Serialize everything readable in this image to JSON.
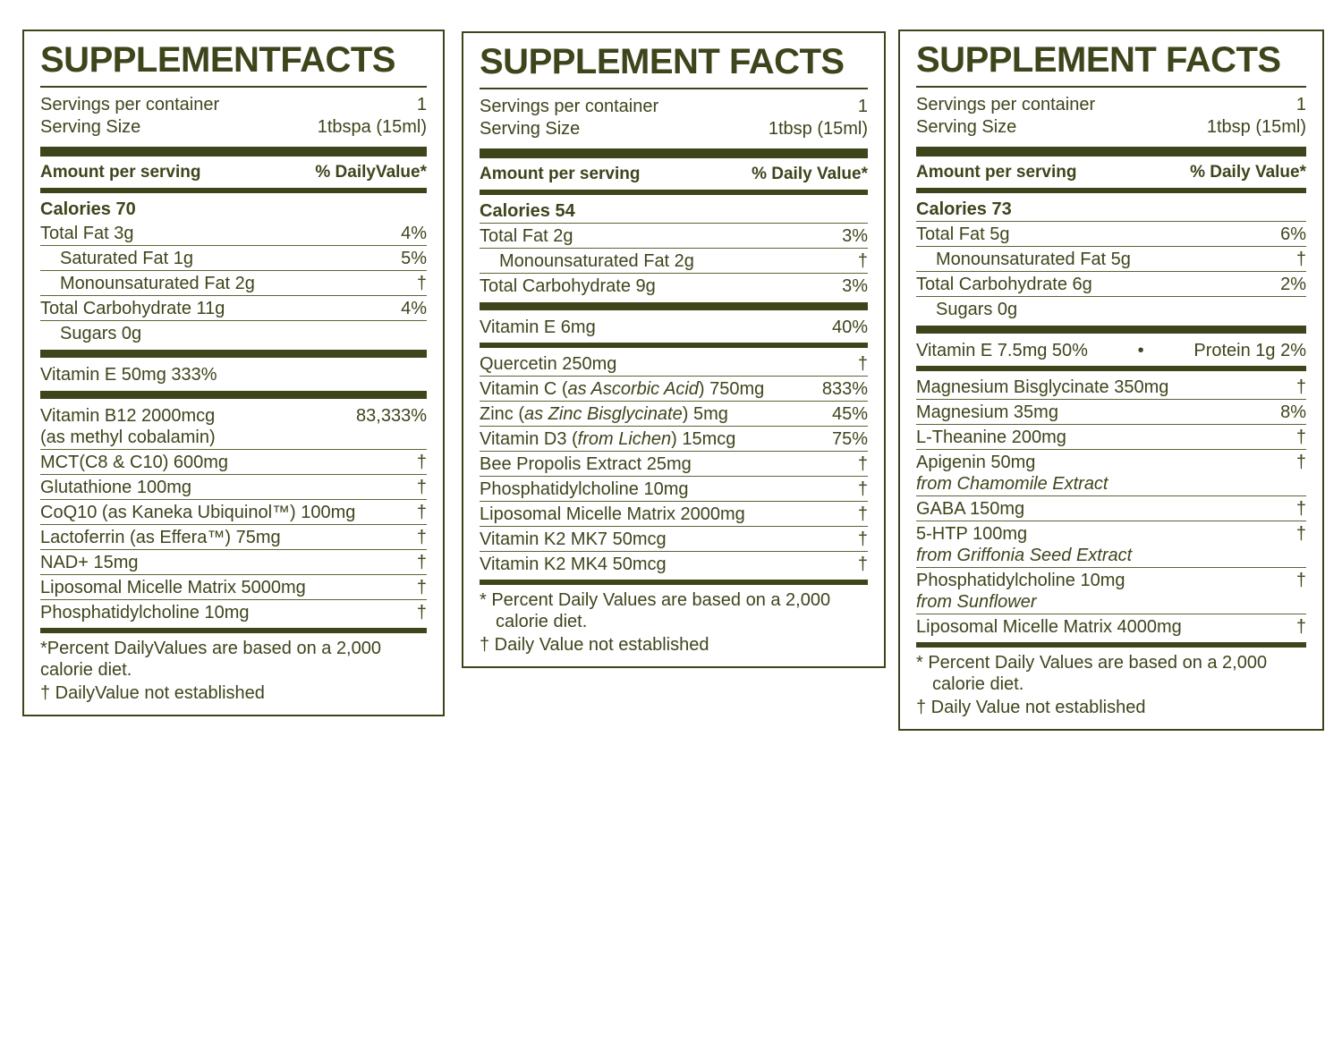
{
  "colors": {
    "ink": "#3d451b",
    "thin_line": "#5f6335",
    "background": "#ffffff"
  },
  "panels": [
    {
      "title": "SUPPLEMENTFACTS",
      "header": {
        "servings_label": "Servings per container",
        "servings_value": "1",
        "size_label": "Serving Size",
        "size_value": "1tbspa (15ml)",
        "amount": "Amount per serving",
        "dv": "% DailyValue*"
      },
      "rows": [
        {
          "t": "row",
          "bold": true,
          "name": [
            {
              "t": "Calories 70"
            }
          ],
          "value": "",
          "div": false
        },
        {
          "t": "row",
          "name": [
            {
              "t": "Total Fat 3g"
            }
          ],
          "value": "4%",
          "div": true
        },
        {
          "t": "row",
          "ind": true,
          "name": [
            {
              "t": "Saturated Fat 1g"
            }
          ],
          "value": "5%",
          "div": true
        },
        {
          "t": "row",
          "ind": true,
          "name": [
            {
              "t": "Monounsaturated Fat 2g"
            }
          ],
          "value": "†",
          "div": true
        },
        {
          "t": "row",
          "name": [
            {
              "t": "Total Carbohydrate 11g"
            }
          ],
          "value": "4%",
          "div": true
        },
        {
          "t": "row",
          "ind": true,
          "name": [
            {
              "t": "Sugars 0g"
            }
          ],
          "value": "",
          "div": false
        },
        {
          "t": "bar",
          "size": "lg"
        },
        {
          "t": "row",
          "name": [
            {
              "t": "Vitamin E 50mg 333%"
            }
          ],
          "value": "",
          "div": false
        },
        {
          "t": "bar",
          "size": "lg"
        },
        {
          "t": "row",
          "name": [
            {
              "t": "Vitamin B12 2000mcg"
            }
          ],
          "sub": [
            {
              "t": "(as methyl cobalamin)"
            }
          ],
          "value": "83,333%",
          "div": true
        },
        {
          "t": "row",
          "name": [
            {
              "t": "MCT(C8 & C10) 600mg"
            }
          ],
          "value": "†",
          "div": true
        },
        {
          "t": "row",
          "name": [
            {
              "t": "Glutathione 100mg"
            }
          ],
          "value": "†",
          "div": true
        },
        {
          "t": "row",
          "name": [
            {
              "t": "CoQ10 (as Kaneka Ubiquinol™) 100mg"
            }
          ],
          "value": "†",
          "div": true
        },
        {
          "t": "row",
          "name": [
            {
              "t": "Lactoferrin (as Effera™) 75mg"
            }
          ],
          "value": "†",
          "div": true
        },
        {
          "t": "row",
          "name": [
            {
              "t": "NAD+ 15mg"
            }
          ],
          "value": "†",
          "div": true
        },
        {
          "t": "row",
          "name": [
            {
              "t": "Liposomal Micelle Matrix 5000mg"
            }
          ],
          "value": "†",
          "div": true
        },
        {
          "t": "row",
          "name": [
            {
              "t": "Phosphatidylcholine 10mg"
            }
          ],
          "value": "†",
          "div": false
        },
        {
          "t": "bar",
          "size": "md"
        }
      ],
      "footnotes": [
        "*Percent DailyValues are based on a 2,000 calorie diet.",
        "† DailyValue not established"
      ]
    },
    {
      "title": "SUPPLEMENT FACTS",
      "header": {
        "servings_label": "Servings per container",
        "servings_value": "1",
        "size_label": "Serving Size",
        "size_value": "1tbsp (15ml)",
        "amount": "Amount per serving",
        "dv": "% Daily Value*"
      },
      "rows": [
        {
          "t": "row",
          "bold": true,
          "name": [
            {
              "t": "Calories 54"
            }
          ],
          "value": "",
          "div": true
        },
        {
          "t": "row",
          "name": [
            {
              "t": "Total Fat 2g"
            }
          ],
          "value": "3%",
          "div": true
        },
        {
          "t": "row",
          "ind": true,
          "name": [
            {
              "t": "Monounsaturated Fat 2g"
            }
          ],
          "value": "†",
          "div": true
        },
        {
          "t": "row",
          "name": [
            {
              "t": "Total Carbohydrate 9g"
            }
          ],
          "value": "3%",
          "div": false
        },
        {
          "t": "bar",
          "size": "lg"
        },
        {
          "t": "row",
          "name": [
            {
              "t": "Vitamin E 6mg"
            }
          ],
          "value": "40%",
          "div": false
        },
        {
          "t": "bar",
          "size": "md"
        },
        {
          "t": "row",
          "name": [
            {
              "t": "Quercetin 250mg"
            }
          ],
          "value": "†",
          "div": true
        },
        {
          "t": "row",
          "name": [
            {
              "t": "Vitamin C ("
            },
            {
              "t": "as Ascorbic Acid",
              "i": true
            },
            {
              "t": ") 750mg"
            }
          ],
          "value": "833%",
          "div": true
        },
        {
          "t": "row",
          "name": [
            {
              "t": "Zinc ("
            },
            {
              "t": "as Zinc Bisglycinate",
              "i": true
            },
            {
              "t": ") 5mg"
            }
          ],
          "value": "45%",
          "div": true
        },
        {
          "t": "row",
          "name": [
            {
              "t": "Vitamin D3 ("
            },
            {
              "t": "from Lichen",
              "i": true
            },
            {
              "t": ") 15mcg"
            }
          ],
          "value": "75%",
          "div": true
        },
        {
          "t": "row",
          "name": [
            {
              "t": "Bee Propolis Extract 25mg"
            }
          ],
          "value": "†",
          "div": true
        },
        {
          "t": "row",
          "name": [
            {
              "t": "Phosphatidylcholine 10mg"
            }
          ],
          "value": "†",
          "div": true
        },
        {
          "t": "row",
          "name": [
            {
              "t": "Liposomal Micelle Matrix 2000mg"
            }
          ],
          "value": "†",
          "div": true
        },
        {
          "t": "row",
          "name": [
            {
              "t": "Vitamin K2 MK7 50mcg"
            }
          ],
          "value": "†",
          "div": true
        },
        {
          "t": "row",
          "name": [
            {
              "t": "Vitamin K2 MK4 50mcg"
            }
          ],
          "value": "†",
          "div": false
        },
        {
          "t": "bar",
          "size": "md"
        }
      ],
      "footnotes": [
        "* Percent Daily Values are based on a 2,000 calorie diet.",
        "† Daily Value not established"
      ]
    },
    {
      "title": "SUPPLEMENT FACTS",
      "header": {
        "servings_label": "Servings per container",
        "servings_value": "1",
        "size_label": "Serving Size",
        "size_value": "1tbsp (15ml)",
        "amount": "Amount per serving",
        "dv": "% Daily Value*"
      },
      "rows": [
        {
          "t": "row",
          "bold": true,
          "name": [
            {
              "t": "Calories 73"
            }
          ],
          "value": "",
          "div": true
        },
        {
          "t": "row",
          "name": [
            {
              "t": "Total Fat 5g"
            }
          ],
          "value": "6%",
          "div": true
        },
        {
          "t": "row",
          "ind": true,
          "name": [
            {
              "t": "Monounsaturated Fat 5g"
            }
          ],
          "value": "†",
          "div": true
        },
        {
          "t": "row",
          "name": [
            {
              "t": "Total Carbohydrate 6g"
            }
          ],
          "value": "2%",
          "div": true
        },
        {
          "t": "row",
          "ind": true,
          "name": [
            {
              "t": "Sugars 0g"
            }
          ],
          "value": "",
          "div": false
        },
        {
          "t": "bar",
          "size": "lg"
        },
        {
          "t": "combo",
          "left": "Vitamin E 7.5mg  50%",
          "dot": "•",
          "right": "Protein 1g  2%"
        },
        {
          "t": "bar",
          "size": "md"
        },
        {
          "t": "row",
          "name": [
            {
              "t": "Magnesium Bisglycinate 350mg"
            }
          ],
          "value": "†",
          "div": true
        },
        {
          "t": "row",
          "name": [
            {
              "t": "Magnesium 35mg"
            }
          ],
          "value": "8%",
          "div": true
        },
        {
          "t": "row",
          "name": [
            {
              "t": "L-Theanine 200mg"
            }
          ],
          "value": "†",
          "div": true
        },
        {
          "t": "row",
          "name": [
            {
              "t": "Apigenin 50mg"
            }
          ],
          "sub": [
            {
              "t": "from Chamomile Extract",
              "i": true
            }
          ],
          "value": "†",
          "div": true
        },
        {
          "t": "row",
          "name": [
            {
              "t": "GABA 150mg"
            }
          ],
          "value": "†",
          "div": true
        },
        {
          "t": "row",
          "name": [
            {
              "t": "5-HTP 100mg"
            }
          ],
          "sub": [
            {
              "t": "from Griffonia Seed Extract",
              "i": true
            }
          ],
          "value": "†",
          "div": true
        },
        {
          "t": "row",
          "name": [
            {
              "t": "Phosphatidylcholine 10mg"
            }
          ],
          "sub": [
            {
              "t": "from Sunflower",
              "i": true
            }
          ],
          "value": "†",
          "div": true
        },
        {
          "t": "row",
          "name": [
            {
              "t": "Liposomal Micelle Matrix 4000mg"
            }
          ],
          "value": "†",
          "div": false
        },
        {
          "t": "bar",
          "size": "md"
        }
      ],
      "footnotes": [
        "* Percent Daily Values are based on a 2,000 calorie diet.",
        "† Daily Value not established"
      ]
    }
  ]
}
